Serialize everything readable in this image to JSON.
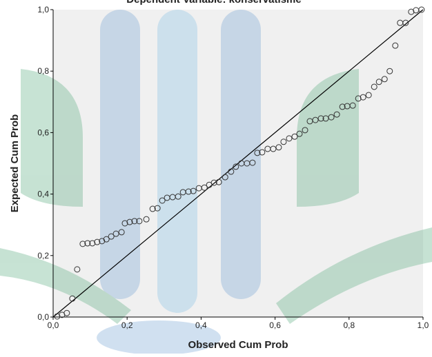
{
  "chart_data": {
    "type": "scatter",
    "title": "Dependent Variable: konservatisme",
    "xlabel": "Observed Cum Prob",
    "ylabel": "Expected Cum Prob",
    "xlim": [
      0,
      1
    ],
    "ylim": [
      0,
      1
    ],
    "xticks": [
      {
        "value": 0,
        "label": "0,0"
      },
      {
        "value": 0.2,
        "label": "0,2"
      },
      {
        "value": 0.4,
        "label": "0,4"
      },
      {
        "value": 0.6,
        "label": "0,6"
      },
      {
        "value": 0.8,
        "label": "0,8"
      },
      {
        "value": 1,
        "label": "1,0"
      }
    ],
    "yticks": [
      {
        "value": 0,
        "label": "0,0"
      },
      {
        "value": 0.2,
        "label": "0,2"
      },
      {
        "value": 0.4,
        "label": "0,4"
      },
      {
        "value": 0.6,
        "label": "0,6"
      },
      {
        "value": 0.8,
        "label": "0,8"
      },
      {
        "value": 1,
        "label": "1,0"
      }
    ],
    "reference_line": true,
    "x": [
      0.011,
      0.024,
      0.037,
      0.052,
      0.065,
      0.08,
      0.093,
      0.106,
      0.119,
      0.132,
      0.144,
      0.157,
      0.17,
      0.185,
      0.194,
      0.207,
      0.22,
      0.233,
      0.252,
      0.269,
      0.282,
      0.295,
      0.308,
      0.323,
      0.338,
      0.351,
      0.366,
      0.379,
      0.394,
      0.409,
      0.422,
      0.435,
      0.448,
      0.465,
      0.481,
      0.494,
      0.509,
      0.524,
      0.539,
      0.552,
      0.565,
      0.58,
      0.595,
      0.61,
      0.623,
      0.638,
      0.653,
      0.666,
      0.681,
      0.694,
      0.709,
      0.724,
      0.737,
      0.752,
      0.767,
      0.782,
      0.795,
      0.81,
      0.825,
      0.838,
      0.853,
      0.868,
      0.881,
      0.896,
      0.91,
      0.925,
      0.938,
      0.953,
      0.968,
      0.981,
      0.996
    ],
    "series": [
      {
        "color": "#333333",
        "values": [
          0.002,
          0.007,
          0.013,
          0.06,
          0.155,
          0.238,
          0.24,
          0.24,
          0.244,
          0.247,
          0.253,
          0.262,
          0.271,
          0.276,
          0.305,
          0.309,
          0.312,
          0.312,
          0.318,
          0.352,
          0.354,
          0.379,
          0.388,
          0.39,
          0.392,
          0.406,
          0.408,
          0.41,
          0.419,
          0.421,
          0.43,
          0.437,
          0.439,
          0.455,
          0.473,
          0.489,
          0.5,
          0.5,
          0.502,
          0.534,
          0.536,
          0.547,
          0.547,
          0.552,
          0.57,
          0.581,
          0.587,
          0.596,
          0.608,
          0.637,
          0.641,
          0.646,
          0.646,
          0.65,
          0.659,
          0.684,
          0.686,
          0.688,
          0.711,
          0.715,
          0.722,
          0.749,
          0.765,
          0.774,
          0.8,
          0.883,
          0.957,
          0.957,
          0.993,
          0.998,
          1.0
        ]
      }
    ]
  }
}
